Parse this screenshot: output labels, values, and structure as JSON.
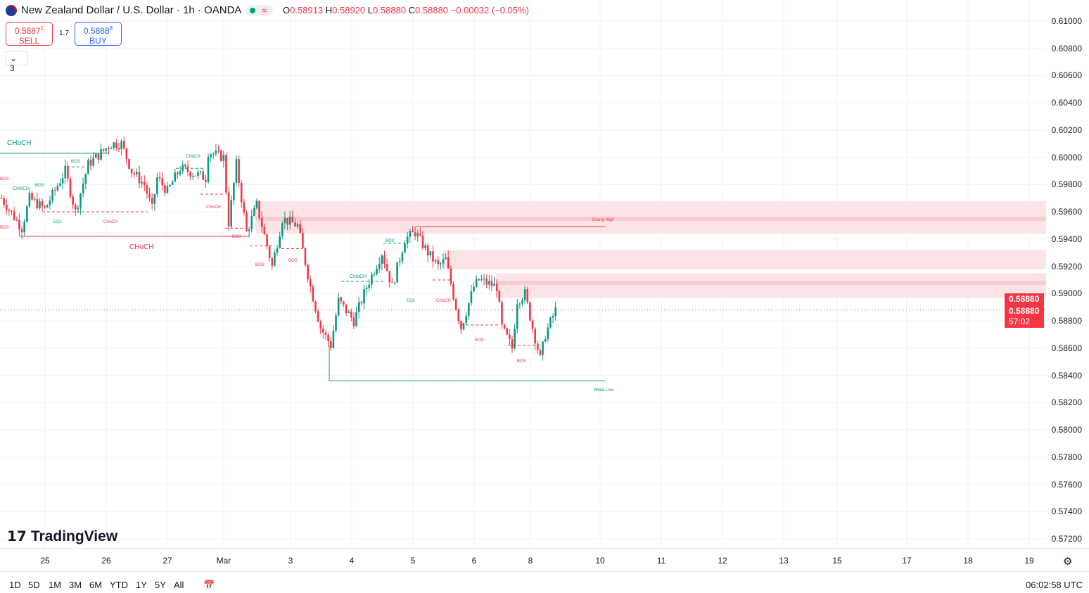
{
  "header": {
    "title": "New Zealand Dollar / U.S. Dollar · 1h · OANDA",
    "open_label": "O",
    "open": "0.58913",
    "high_label": "H",
    "high": "0.58920",
    "low_label": "L",
    "low": "0.58880",
    "close_label": "C",
    "close": "0.58880",
    "change": "−0.00032 (−0.05%)",
    "wave_icon": "≈"
  },
  "trade": {
    "sell_price": "0.5887",
    "sell_sup": "1",
    "sell_label": "SELL",
    "spread": "1.7",
    "buy_price": "0.5888",
    "buy_sup": "8",
    "buy_label": "BUY"
  },
  "indicators_collapsed": {
    "chevron": "⌄",
    "count": "3"
  },
  "price_axis": [
    "0.61000",
    "0.60800",
    "0.60600",
    "0.60400",
    "0.60200",
    "0.60000",
    "0.59800",
    "0.59600",
    "0.59400",
    "0.59200",
    "0.59000",
    "0.58800",
    "0.58600",
    "0.58400",
    "0.58200",
    "0.58000",
    "0.57800",
    "0.57600",
    "0.57400",
    "0.57200"
  ],
  "price_tags": {
    "last": "0.58880",
    "bid": "0.58880",
    "countdown": "57:02"
  },
  "time_axis": [
    "25",
    "26",
    "27",
    "Mar",
    "3",
    "4",
    "5",
    "6",
    "8",
    "10",
    "11",
    "12",
    "13",
    "15",
    "17",
    "18",
    "19"
  ],
  "annotations": [
    "CHoCH",
    "CHoCH",
    "BOS",
    "CHoCH",
    "BOS",
    "EQL",
    "CHoCH",
    "CHoCH",
    "CHoCH",
    "BOS",
    "BOS",
    "BOS",
    "BOS",
    "CHoCH",
    "EQL",
    "CHoCH",
    "BOS",
    "BOS",
    "Strong High",
    "Weak Low",
    "BOS",
    "BOS"
  ],
  "price_path": [
    [
      0,
      0.597
    ],
    [
      8,
      0.5948
    ],
    [
      11,
      0.597
    ],
    [
      17,
      0.5962
    ],
    [
      25,
      0.599
    ],
    [
      29,
      0.596
    ],
    [
      34,
      0.5995
    ],
    [
      43,
      0.601
    ],
    [
      47,
      0.601
    ],
    [
      51,
      0.599
    ],
    [
      56,
      0.598
    ],
    [
      59,
      0.5962
    ],
    [
      61,
      0.5985
    ],
    [
      65,
      0.5975
    ],
    [
      70,
      0.5992
    ],
    [
      80,
      0.5985
    ],
    [
      81,
      0.6004
    ],
    [
      87,
      0.6
    ],
    [
      89,
      0.5952
    ],
    [
      92,
      0.5995
    ],
    [
      96,
      0.5945
    ],
    [
      100,
      0.5965
    ],
    [
      106,
      0.592
    ],
    [
      110,
      0.5955
    ],
    [
      116,
      0.595
    ],
    [
      121,
      0.5905
    ],
    [
      125,
      0.5875
    ],
    [
      129,
      0.5862
    ],
    [
      132,
      0.5895
    ],
    [
      138,
      0.588
    ],
    [
      143,
      0.5905
    ],
    [
      149,
      0.593
    ],
    [
      153,
      0.5905
    ],
    [
      158,
      0.594
    ],
    [
      162,
      0.5945
    ],
    [
      167,
      0.593
    ],
    [
      171,
      0.592
    ],
    [
      174,
      0.5925
    ],
    [
      178,
      0.589
    ],
    [
      180,
      0.5875
    ],
    [
      185,
      0.5905
    ],
    [
      187,
      0.591
    ],
    [
      194,
      0.5905
    ],
    [
      196,
      0.5875
    ],
    [
      200,
      0.586
    ],
    [
      202,
      0.5895
    ],
    [
      205,
      0.59
    ],
    [
      208,
      0.5875
    ],
    [
      211,
      0.5852
    ],
    [
      213,
      0.587
    ],
    [
      217,
      0.5888
    ]
  ],
  "zones": [
    {
      "top": 0.5968,
      "bottom": 0.5944,
      "mid": 0.5955
    },
    {
      "top": 0.5932,
      "bottom": 0.5918
    },
    {
      "top": 0.5915,
      "bottom": 0.5897,
      "mid": 0.5908
    }
  ],
  "levels": {
    "strong_high": 0.5949,
    "weak_low": 0.5836,
    "last": 0.5888
  },
  "colors": {
    "up": "#089981",
    "down": "#f23645",
    "zone": "#fce4e6"
  },
  "range_buttons": [
    "1D",
    "5D",
    "1M",
    "3M",
    "6M",
    "YTD",
    "1Y",
    "5Y",
    "All"
  ],
  "clock": "06:02:58 UTC",
  "logo_text": "TradingView"
}
